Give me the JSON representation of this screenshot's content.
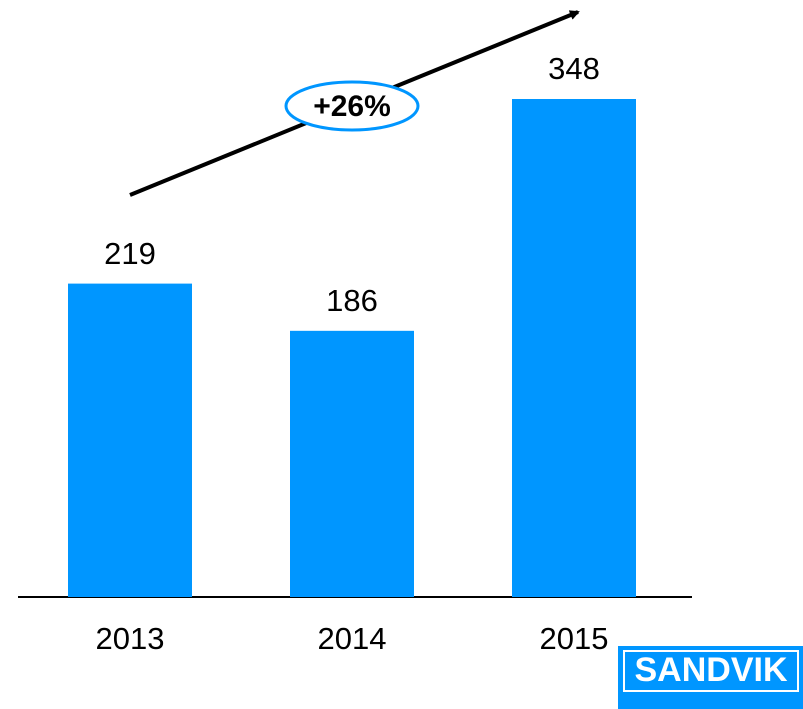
{
  "chart_data": {
    "type": "bar",
    "categories": [
      "2013",
      "2014",
      "2015"
    ],
    "values": [
      219,
      186,
      348
    ],
    "color": "#0096ff",
    "ylim": [
      0,
      348
    ],
    "annotation": "+26%",
    "logo": "SANDVIK"
  }
}
